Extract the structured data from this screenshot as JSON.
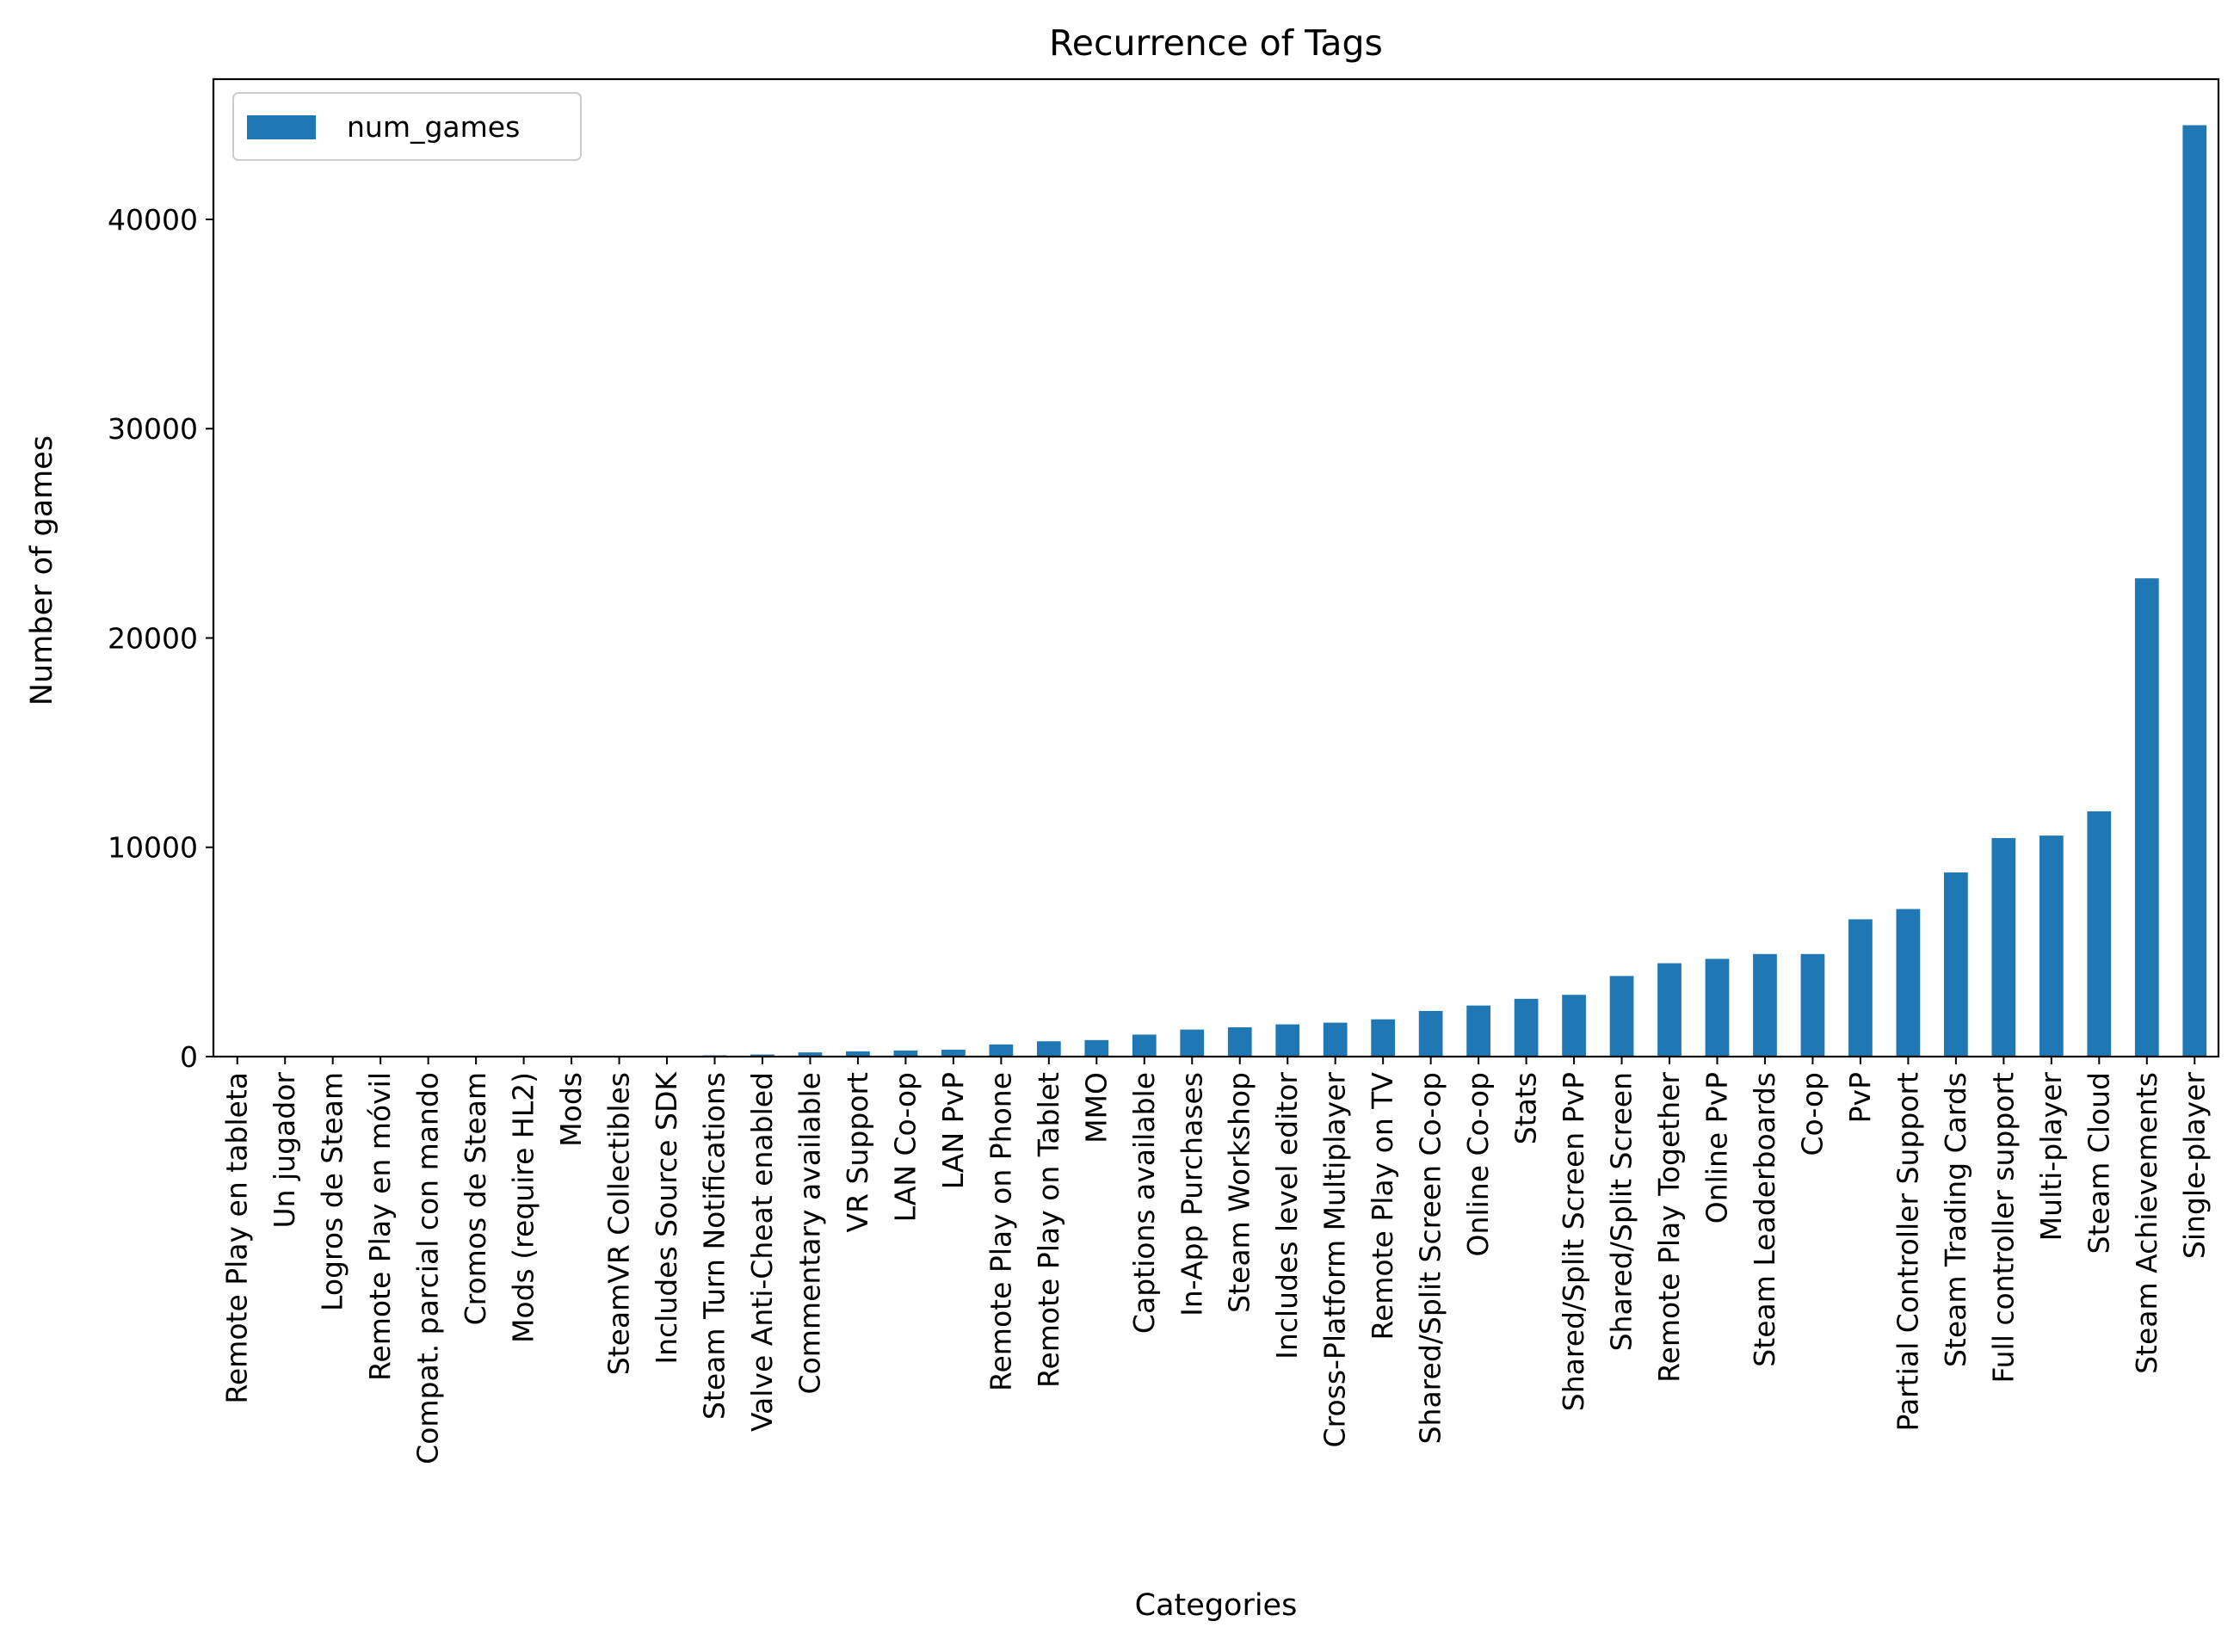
{
  "chart_data": {
    "type": "bar",
    "title": "Recurrence of Tags",
    "xlabel": "Categories",
    "ylabel": "Number of games",
    "legend": {
      "position": "top-left",
      "entries": [
        "num_games"
      ]
    },
    "grid": false,
    "ylim": [
      0,
      46700
    ],
    "yticks": [
      0,
      10000,
      20000,
      30000,
      40000
    ],
    "colors": {
      "bar": "#1f77b4",
      "axis": "#000000",
      "background": "#ffffff"
    },
    "categories": [
      "Remote Play en tableta",
      "Un jugador",
      "Logros de Steam",
      "Remote Play en móvil",
      "Compat. parcial con mando",
      "Cromos de Steam",
      "Mods (require HL2)",
      "Mods",
      "SteamVR Collectibles",
      "Includes Source SDK",
      "Steam Turn Notifications",
      "Valve Anti-Cheat enabled",
      "Commentary available",
      "VR Support",
      "LAN Co-op",
      "LAN PvP",
      "Remote Play on Phone",
      "Remote Play on Tablet",
      "MMO",
      "Captions available",
      "In-App Purchases",
      "Steam Workshop",
      "Includes level editor",
      "Cross-Platform Multiplayer",
      "Remote Play on TV",
      "Shared/Split Screen Co-op",
      "Online Co-op",
      "Stats",
      "Shared/Split Screen PvP",
      "Shared/Split Screen",
      "Remote Play Together",
      "Online PvP",
      "Steam Leaderboards",
      "Co-op",
      "PvP",
      "Partial Controller Support",
      "Steam Trading Cards",
      "Full controller support",
      "Multi-player",
      "Steam Cloud",
      "Steam Achievements",
      "Single-player"
    ],
    "series": [
      {
        "name": "num_games",
        "values": [
          1,
          1,
          1,
          1,
          1,
          1,
          2,
          5,
          10,
          25,
          60,
          100,
          200,
          250,
          290,
          330,
          580,
          730,
          790,
          1050,
          1290,
          1400,
          1540,
          1620,
          1780,
          2180,
          2440,
          2760,
          2950,
          3850,
          4460,
          4670,
          4900,
          4900,
          6560,
          7050,
          8800,
          10440,
          10560,
          11720,
          22850,
          44500
        ]
      }
    ]
  }
}
